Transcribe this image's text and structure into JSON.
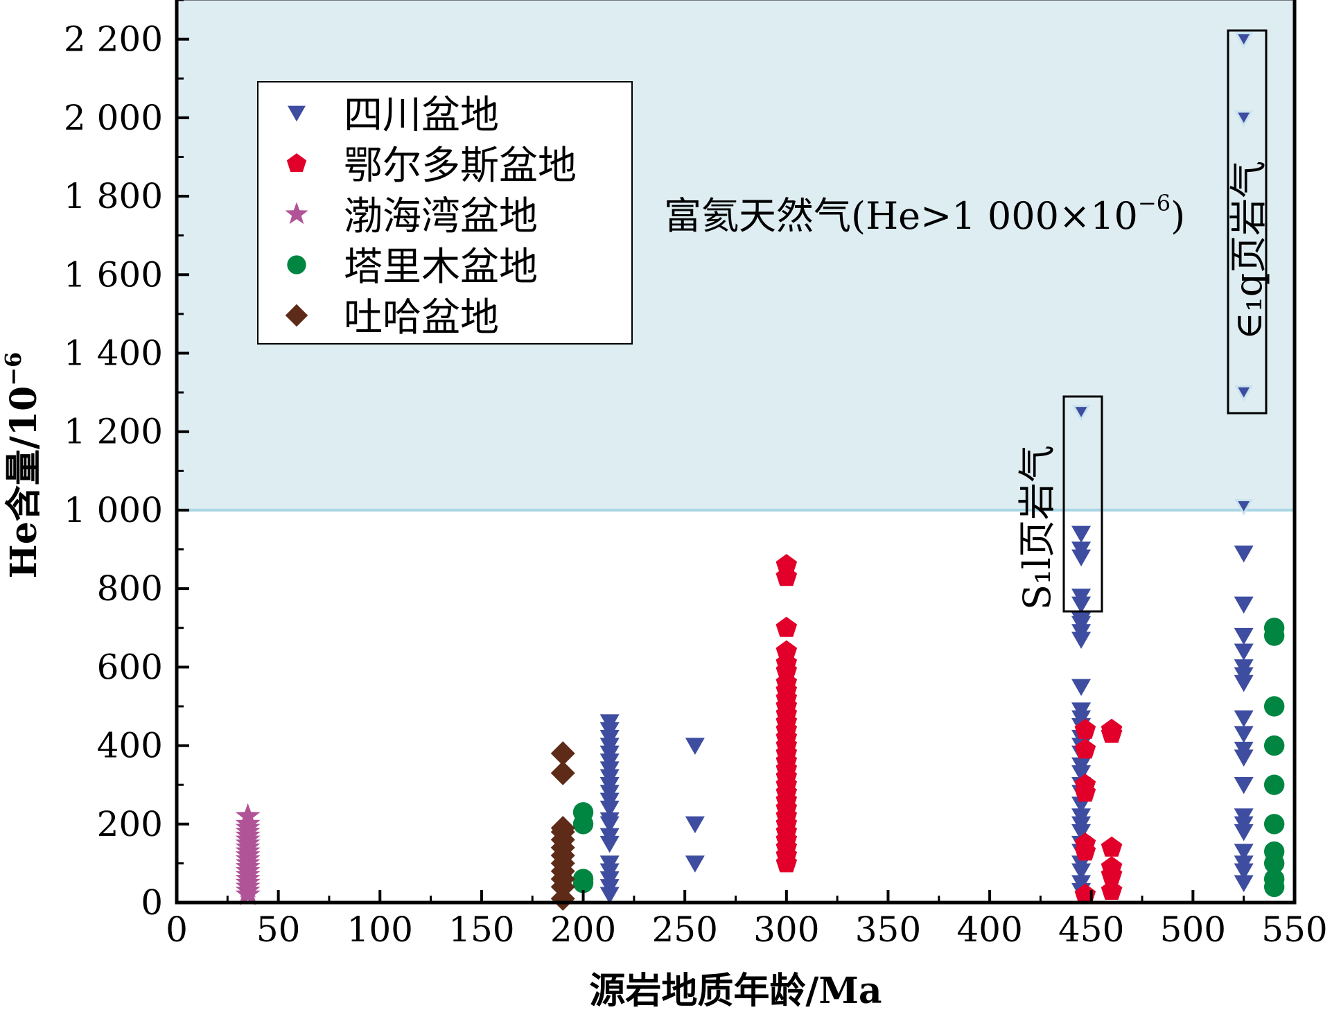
{
  "chart_data": {
    "type": "scatter",
    "title": "",
    "xlabel": "源岩地质年龄/Ma",
    "ylabel": "He含量/10⁻⁶",
    "ylabel_parts": {
      "text": "He含量/10",
      "sup": "−6"
    },
    "xlim": [
      0,
      550
    ],
    "ylim": [
      0,
      2300
    ],
    "xticks": [
      0,
      50,
      100,
      150,
      200,
      250,
      300,
      350,
      400,
      450,
      500,
      550
    ],
    "yticks": [
      0,
      200,
      400,
      600,
      800,
      1000,
      1200,
      1400,
      1600,
      1800,
      2000,
      2200
    ],
    "xtick_labels": [
      "0",
      "50",
      "100",
      "150",
      "200",
      "250",
      "300",
      "350",
      "400",
      "450",
      "500",
      "550"
    ],
    "ytick_labels": [
      "0",
      "200",
      "400",
      "600",
      "800",
      "1 000",
      "1 200",
      "1 400",
      "1 600",
      "1 800",
      "2 000",
      "2 200"
    ],
    "grid": false,
    "legend_position": "upper-left",
    "region": {
      "label": "富氦天然气(He>1 000×10⁻⁶)",
      "label_parts": {
        "text": "富氦天然气(He>1 000×10",
        "sup": "−6",
        "close": ")"
      },
      "y_from": 1000,
      "color": "#deedf2",
      "line_color": "#a9d6e5"
    },
    "annotations": [
      {
        "text": "S₁l页岩气",
        "x": 445,
        "y_range": [
          780,
          1250
        ]
      },
      {
        "text": "∈₁q页岩气",
        "x": 525,
        "y_range": [
          1300,
          2200
        ]
      }
    ],
    "series": [
      {
        "name": "四川盆地",
        "marker": "triangle-down",
        "color": "#3e4da0",
        "points": [
          [
            213,
            20
          ],
          [
            213,
            40
          ],
          [
            213,
            60
          ],
          [
            213,
            80
          ],
          [
            213,
            100
          ],
          [
            213,
            150
          ],
          [
            213,
            170
          ],
          [
            213,
            200
          ],
          [
            213,
            210
          ],
          [
            213,
            240
          ],
          [
            213,
            260
          ],
          [
            213,
            280
          ],
          [
            213,
            300
          ],
          [
            213,
            320
          ],
          [
            213,
            340
          ],
          [
            213,
            360
          ],
          [
            213,
            380
          ],
          [
            213,
            400
          ],
          [
            213,
            420
          ],
          [
            213,
            440
          ],
          [
            213,
            460
          ],
          [
            255,
            100
          ],
          [
            255,
            200
          ],
          [
            255,
            400
          ],
          [
            445,
            30
          ],
          [
            445,
            50
          ],
          [
            445,
            80
          ],
          [
            445,
            100
          ],
          [
            445,
            130
          ],
          [
            445,
            150
          ],
          [
            445,
            180
          ],
          [
            445,
            200
          ],
          [
            445,
            220
          ],
          [
            445,
            250
          ],
          [
            445,
            280
          ],
          [
            445,
            300
          ],
          [
            445,
            330
          ],
          [
            445,
            350
          ],
          [
            445,
            380
          ],
          [
            445,
            400
          ],
          [
            445,
            420
          ],
          [
            445,
            450
          ],
          [
            445,
            470
          ],
          [
            445,
            490
          ],
          [
            445,
            550
          ],
          [
            445,
            670
          ],
          [
            445,
            690
          ],
          [
            445,
            710
          ],
          [
            445,
            720
          ],
          [
            445,
            760
          ],
          [
            445,
            780
          ],
          [
            445,
            880
          ],
          [
            445,
            900
          ],
          [
            445,
            940
          ],
          [
            445,
            1250
          ],
          [
            525,
            50
          ],
          [
            525,
            80
          ],
          [
            525,
            100
          ],
          [
            525,
            130
          ],
          [
            525,
            180
          ],
          [
            525,
            200
          ],
          [
            525,
            220
          ],
          [
            525,
            300
          ],
          [
            525,
            370
          ],
          [
            525,
            390
          ],
          [
            525,
            430
          ],
          [
            525,
            470
          ],
          [
            525,
            560
          ],
          [
            525,
            580
          ],
          [
            525,
            600
          ],
          [
            525,
            640
          ],
          [
            525,
            680
          ],
          [
            525,
            760
          ],
          [
            525,
            890
          ],
          [
            525,
            1010
          ],
          [
            525,
            1300
          ],
          [
            525,
            2000
          ],
          [
            525,
            2200
          ]
        ]
      },
      {
        "name": "鄂尔多斯盆地",
        "marker": "pentagon",
        "color": "#e2002b",
        "points": [
          [
            300,
            100
          ],
          [
            300,
            120
          ],
          [
            300,
            140
          ],
          [
            300,
            160
          ],
          [
            300,
            180
          ],
          [
            300,
            200
          ],
          [
            300,
            220
          ],
          [
            300,
            240
          ],
          [
            300,
            260
          ],
          [
            300,
            280
          ],
          [
            300,
            300
          ],
          [
            300,
            320
          ],
          [
            300,
            340
          ],
          [
            300,
            360
          ],
          [
            300,
            380
          ],
          [
            300,
            400
          ],
          [
            300,
            420
          ],
          [
            300,
            440
          ],
          [
            300,
            460
          ],
          [
            300,
            480
          ],
          [
            300,
            500
          ],
          [
            300,
            520
          ],
          [
            300,
            540
          ],
          [
            300,
            560
          ],
          [
            300,
            590
          ],
          [
            300,
            610
          ],
          [
            300,
            640
          ],
          [
            300,
            700
          ],
          [
            300,
            830
          ],
          [
            300,
            860
          ],
          [
            447,
            20
          ],
          [
            447,
            130
          ],
          [
            447,
            150
          ],
          [
            447,
            280
          ],
          [
            447,
            300
          ],
          [
            447,
            390
          ],
          [
            447,
            440
          ],
          [
            460,
            30
          ],
          [
            460,
            70
          ],
          [
            460,
            90
          ],
          [
            460,
            140
          ],
          [
            460,
            430
          ],
          [
            460,
            440
          ]
        ]
      },
      {
        "name": "渤海湾盆地",
        "marker": "star",
        "color": "#b15497",
        "points": [
          [
            35,
            20
          ],
          [
            35,
            30
          ],
          [
            35,
            40
          ],
          [
            35,
            50
          ],
          [
            35,
            60
          ],
          [
            35,
            70
          ],
          [
            35,
            80
          ],
          [
            35,
            90
          ],
          [
            35,
            100
          ],
          [
            35,
            110
          ],
          [
            35,
            120
          ],
          [
            35,
            130
          ],
          [
            35,
            140
          ],
          [
            35,
            150
          ],
          [
            35,
            160
          ],
          [
            35,
            170
          ],
          [
            35,
            180
          ],
          [
            35,
            190
          ],
          [
            35,
            200
          ],
          [
            35,
            220
          ]
        ]
      },
      {
        "name": "塔里木盆地",
        "marker": "circle",
        "color": "#008641",
        "points": [
          [
            200,
            50
          ],
          [
            200,
            60
          ],
          [
            200,
            200
          ],
          [
            200,
            230
          ],
          [
            540,
            40
          ],
          [
            540,
            60
          ],
          [
            540,
            100
          ],
          [
            540,
            130
          ],
          [
            540,
            200
          ],
          [
            540,
            300
          ],
          [
            540,
            400
          ],
          [
            540,
            500
          ],
          [
            540,
            680
          ],
          [
            540,
            700
          ]
        ]
      },
      {
        "name": "吐哈盆地",
        "marker": "diamond",
        "color": "#5d2b17",
        "points": [
          [
            190,
            10
          ],
          [
            190,
            40
          ],
          [
            190,
            60
          ],
          [
            190,
            80
          ],
          [
            190,
            100
          ],
          [
            190,
            120
          ],
          [
            190,
            140
          ],
          [
            190,
            160
          ],
          [
            190,
            180
          ],
          [
            190,
            190
          ],
          [
            190,
            330
          ],
          [
            190,
            380
          ]
        ]
      }
    ]
  }
}
